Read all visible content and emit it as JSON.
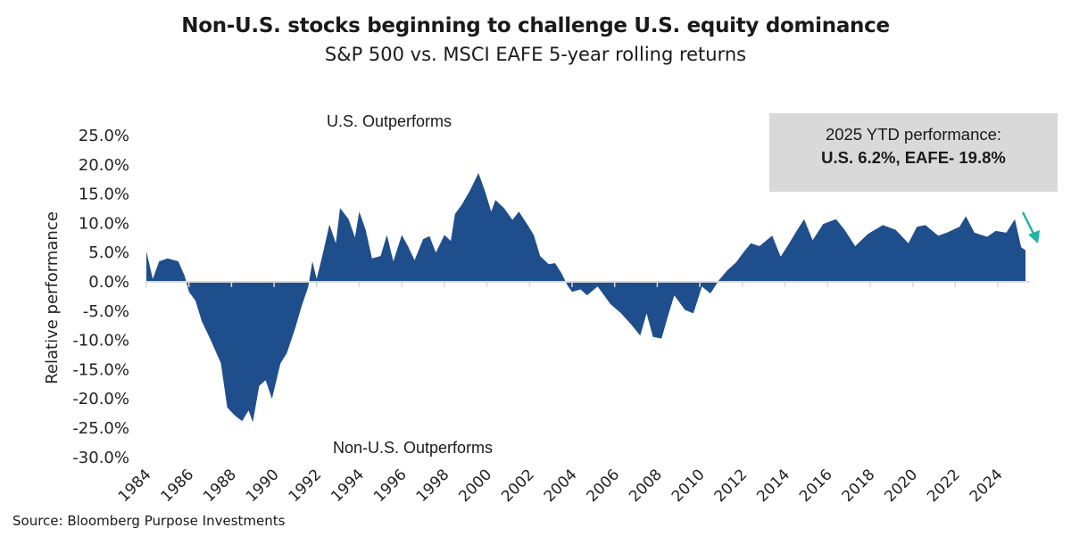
{
  "title": "Non-U.S. stocks beginning to challenge U.S. equity dominance",
  "subtitle": "S&P 500 vs. MSCI EAFE 5-year rolling returns",
  "annotations": {
    "top": "U.S. Outperforms",
    "bottom": "Non-U.S. Outperforms",
    "box_line1": "2025 YTD performance:",
    "box_line2": "U.S. 6.2%, EAFE- 19.8%"
  },
  "source": "Source: Bloomberg Purpose Investments",
  "colors": {
    "area": "#1f4e8c",
    "arrow": "#1fb5a5",
    "box": "#d9d9d9",
    "axis": "#d9d9d9"
  },
  "chart_data": {
    "type": "area",
    "title": "Non-U.S. stocks beginning to challenge U.S. equity dominance",
    "subtitle": "S&P 500 vs. MSCI EAFE 5-year rolling returns",
    "xlabel": "",
    "ylabel": "Relative performance",
    "xlim": [
      1984,
      2025.5
    ],
    "ylim": [
      -30,
      25
    ],
    "grid": false,
    "legend": "none",
    "x_ticks": [
      "1984",
      "1986",
      "1988",
      "1990",
      "1992",
      "1994",
      "1996",
      "1998",
      "2000",
      "2002",
      "2004",
      "2006",
      "2008",
      "2010",
      "2012",
      "2014",
      "2016",
      "2018",
      "2020",
      "2022",
      "2024"
    ],
    "y_ticks": [
      "25.0%",
      "20.0%",
      "15.0%",
      "10.0%",
      "5.0%",
      "0.0%",
      "-5.0%",
      "-10.0%",
      "-15.0%",
      "-20.0%",
      "-25.0%",
      "-30.0%"
    ],
    "points": [
      [
        1984.0,
        5.2
      ],
      [
        1984.3,
        0.5
      ],
      [
        1984.6,
        3.5
      ],
      [
        1985.0,
        4.0
      ],
      [
        1985.5,
        3.5
      ],
      [
        1985.8,
        1.0
      ],
      [
        1986.0,
        -1.7
      ],
      [
        1986.3,
        -3.2
      ],
      [
        1986.6,
        -6.7
      ],
      [
        1987.0,
        -9.8
      ],
      [
        1987.5,
        -13.9
      ],
      [
        1987.8,
        -21.5
      ],
      [
        1988.2,
        -23.0
      ],
      [
        1988.5,
        -23.8
      ],
      [
        1988.8,
        -22.0
      ],
      [
        1989.0,
        -24.0
      ],
      [
        1989.3,
        -17.8
      ],
      [
        1989.6,
        -16.8
      ],
      [
        1989.9,
        -20.0
      ],
      [
        1990.3,
        -13.9
      ],
      [
        1990.6,
        -12.2
      ],
      [
        1991.0,
        -7.8
      ],
      [
        1991.3,
        -4.1
      ],
      [
        1991.6,
        -0.9
      ],
      [
        1991.8,
        3.5
      ],
      [
        1992.0,
        0.5
      ],
      [
        1992.3,
        5.0
      ],
      [
        1992.6,
        9.8
      ],
      [
        1992.9,
        6.6
      ],
      [
        1993.1,
        12.6
      ],
      [
        1993.5,
        10.7
      ],
      [
        1993.8,
        7.6
      ],
      [
        1994.0,
        12.0
      ],
      [
        1994.3,
        8.9
      ],
      [
        1994.6,
        4.0
      ],
      [
        1995.0,
        4.4
      ],
      [
        1995.3,
        8.0
      ],
      [
        1995.6,
        3.5
      ],
      [
        1996.0,
        8.0
      ],
      [
        1996.3,
        6.0
      ],
      [
        1996.6,
        3.7
      ],
      [
        1997.0,
        7.3
      ],
      [
        1997.3,
        7.8
      ],
      [
        1997.6,
        5.0
      ],
      [
        1998.0,
        8.0
      ],
      [
        1998.3,
        7.0
      ],
      [
        1998.5,
        11.6
      ],
      [
        1998.8,
        13.1
      ],
      [
        1999.2,
        15.6
      ],
      [
        1999.6,
        18.6
      ],
      [
        1999.9,
        15.6
      ],
      [
        2000.2,
        12.0
      ],
      [
        2000.4,
        14.0
      ],
      [
        2000.8,
        12.6
      ],
      [
        2001.2,
        10.6
      ],
      [
        2001.5,
        12.0
      ],
      [
        2001.9,
        9.8
      ],
      [
        2002.2,
        8.0
      ],
      [
        2002.5,
        4.4
      ],
      [
        2002.9,
        3.0
      ],
      [
        2003.2,
        3.2
      ],
      [
        2003.5,
        1.5
      ],
      [
        2003.8,
        -0.7
      ],
      [
        2004.0,
        -1.7
      ],
      [
        2004.4,
        -1.3
      ],
      [
        2004.7,
        -2.3
      ],
      [
        2005.2,
        -0.8
      ],
      [
        2005.8,
        -3.8
      ],
      [
        2006.3,
        -5.4
      ],
      [
        2006.8,
        -7.4
      ],
      [
        2007.2,
        -9.2
      ],
      [
        2007.5,
        -5.4
      ],
      [
        2007.8,
        -9.4
      ],
      [
        2008.2,
        -9.7
      ],
      [
        2008.5,
        -5.9
      ],
      [
        2008.8,
        -2.3
      ],
      [
        2009.3,
        -4.8
      ],
      [
        2009.7,
        -5.4
      ],
      [
        2010.1,
        -0.8
      ],
      [
        2010.5,
        -2.0
      ],
      [
        2010.9,
        0.3
      ],
      [
        2011.3,
        2.0
      ],
      [
        2011.7,
        3.3
      ],
      [
        2012.0,
        4.8
      ],
      [
        2012.4,
        6.6
      ],
      [
        2012.8,
        6.1
      ],
      [
        2013.4,
        7.9
      ],
      [
        2013.8,
        4.3
      ],
      [
        2014.2,
        6.6
      ],
      [
        2014.5,
        8.4
      ],
      [
        2014.9,
        10.7
      ],
      [
        2015.3,
        7.1
      ],
      [
        2015.8,
        9.9
      ],
      [
        2016.4,
        10.7
      ],
      [
        2016.8,
        8.9
      ],
      [
        2017.3,
        6.1
      ],
      [
        2017.9,
        8.2
      ],
      [
        2018.6,
        9.7
      ],
      [
        2019.2,
        8.9
      ],
      [
        2019.8,
        6.6
      ],
      [
        2020.2,
        9.4
      ],
      [
        2020.6,
        9.7
      ],
      [
        2021.2,
        7.9
      ],
      [
        2021.6,
        8.4
      ],
      [
        2022.2,
        9.4
      ],
      [
        2022.5,
        11.2
      ],
      [
        2022.9,
        8.4
      ],
      [
        2023.5,
        7.7
      ],
      [
        2023.9,
        8.7
      ],
      [
        2024.4,
        8.4
      ],
      [
        2024.8,
        10.7
      ],
      [
        2025.1,
        5.9
      ],
      [
        2025.3,
        5.4
      ]
    ]
  }
}
